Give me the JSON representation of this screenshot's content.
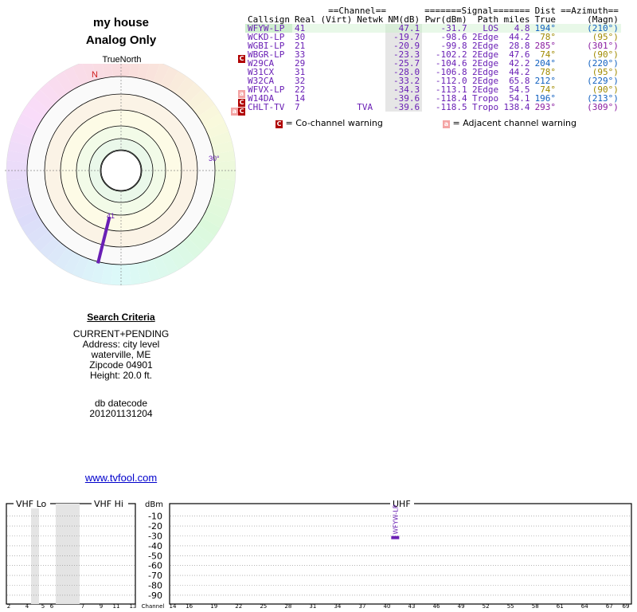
{
  "header": {
    "title": "my house",
    "subtitle": "Analog Only"
  },
  "radar": {
    "north_label": "TrueNorth",
    "n_label": "N",
    "ring_label_30": "30°",
    "selected_channel_label": "41",
    "selected_azimuth_deg": 194,
    "colors": {
      "north": "#d02020",
      "beam": "#6a1fb5",
      "ring_label": "#6a1fb5"
    }
  },
  "search": {
    "heading": "Search Criteria",
    "lines": [
      "CURRENT+PENDING",
      "Address: city level",
      "waterville, ME",
      "Zipcode 04901",
      "Height: 20.0 ft."
    ],
    "datecode_label": "db datecode",
    "datecode": "201201131204",
    "link": "www.tvfool.com"
  },
  "table": {
    "group_headers": {
      "channel": "==Channel==",
      "signal": "=======Signal=======",
      "dist": "Dist",
      "azimuth": "==Azimuth=="
    },
    "columns": [
      "Callsign",
      "Real",
      "(Virt)",
      "Netwk",
      "NM(dB)",
      "Pwr(dBm)",
      "Path",
      "miles",
      "True",
      "(Magn)"
    ],
    "rows": [
      {
        "badge": "",
        "callsign": "WFYW-LP",
        "real": "41",
        "virt": "",
        "netwk": "",
        "nm": "47.1",
        "pwr": "-31.7",
        "path": "LOS",
        "miles": "4.8",
        "true": "194°",
        "magn": "(210°)",
        "az_color": "#1060c0",
        "selected": true
      },
      {
        "badge": "",
        "callsign": "WCKD-LP",
        "real": "30",
        "virt": "",
        "netwk": "",
        "nm": "-19.7",
        "pwr": "-98.6",
        "path": "2Edge",
        "miles": "44.2",
        "true": "78°",
        "magn": "(95°)",
        "az_color": "#a08a00",
        "selected": false
      },
      {
        "badge": "",
        "callsign": "WGBI-LP",
        "real": "21",
        "virt": "",
        "netwk": "",
        "nm": "-20.9",
        "pwr": "-99.8",
        "path": "2Edge",
        "miles": "28.8",
        "true": "285°",
        "magn": "(301°)",
        "az_color": "#8a1ca0",
        "selected": false
      },
      {
        "badge": "C",
        "callsign": "WBGR-LP",
        "real": "33",
        "virt": "",
        "netwk": "",
        "nm": "-23.3",
        "pwr": "-102.2",
        "path": "2Edge",
        "miles": "47.6",
        "true": "74°",
        "magn": "(90°)",
        "az_color": "#a08a00",
        "selected": false
      },
      {
        "badge": "",
        "callsign": "W29CA",
        "real": "29",
        "virt": "",
        "netwk": "",
        "nm": "-25.7",
        "pwr": "-104.6",
        "path": "2Edge",
        "miles": "42.2",
        "true": "204°",
        "magn": "(220°)",
        "az_color": "#1060c0",
        "selected": false
      },
      {
        "badge": "",
        "callsign": "W31CX",
        "real": "31",
        "virt": "",
        "netwk": "",
        "nm": "-28.0",
        "pwr": "-106.8",
        "path": "2Edge",
        "miles": "44.2",
        "true": "78°",
        "magn": "(95°)",
        "az_color": "#a08a00",
        "selected": false
      },
      {
        "badge": "",
        "callsign": "W32CA",
        "real": "32",
        "virt": "",
        "netwk": "",
        "nm": "-33.2",
        "pwr": "-112.0",
        "path": "2Edge",
        "miles": "65.8",
        "true": "212°",
        "magn": "(229°)",
        "az_color": "#1060c0",
        "selected": false
      },
      {
        "badge": "a",
        "callsign": "WFVX-LP",
        "real": "22",
        "virt": "",
        "netwk": "",
        "nm": "-34.3",
        "pwr": "-113.1",
        "path": "2Edge",
        "miles": "54.5",
        "true": "74°",
        "magn": "(90°)",
        "az_color": "#a08a00",
        "selected": false
      },
      {
        "badge": "C",
        "callsign": "W14DA",
        "real": "14",
        "virt": "",
        "netwk": "",
        "nm": "-39.6",
        "pwr": "-118.4",
        "path": "Tropo",
        "miles": "54.1",
        "true": "196°",
        "magn": "(213°)",
        "az_color": "#1060c0",
        "selected": false
      },
      {
        "badge": "aC",
        "callsign": "CHLT-TV",
        "real": "7",
        "virt": "",
        "netwk": "TVA",
        "nm": "-39.6",
        "pwr": "-118.5",
        "path": "Tropo",
        "miles": "138.4",
        "true": "293°",
        "magn": "(309°)",
        "az_color": "#8a1ca0",
        "selected": false
      }
    ],
    "text_color": "#6a1fb5"
  },
  "legend": {
    "cochannel": "= Co-channel warning",
    "adjacent": "= Adjacent channel warning",
    "c_glyph": "C",
    "a_glyph": "a"
  },
  "spectrum": {
    "vhf_lo": "VHF Lo",
    "vhf_hi": "VHF Hi",
    "uhf": "UHF",
    "dbm": "dBm",
    "channel_label": "Channel",
    "y_ticks": [
      "-10",
      "-20",
      "-30",
      "-40",
      "-50",
      "-60",
      "-70",
      "-80",
      "-90"
    ],
    "vhf_ticks": [
      "2",
      "4",
      "5",
      "6",
      "7",
      "9",
      "11",
      "13"
    ],
    "uhf_ticks": [
      "14",
      "16",
      "19",
      "22",
      "25",
      "28",
      "31",
      "34",
      "37",
      "40",
      "43",
      "46",
      "49",
      "52",
      "55",
      "58",
      "61",
      "64",
      "67",
      "69"
    ],
    "bar_label": "WFYW-LP",
    "bar_channel": 41,
    "bar_value_dbm": -31.7
  }
}
